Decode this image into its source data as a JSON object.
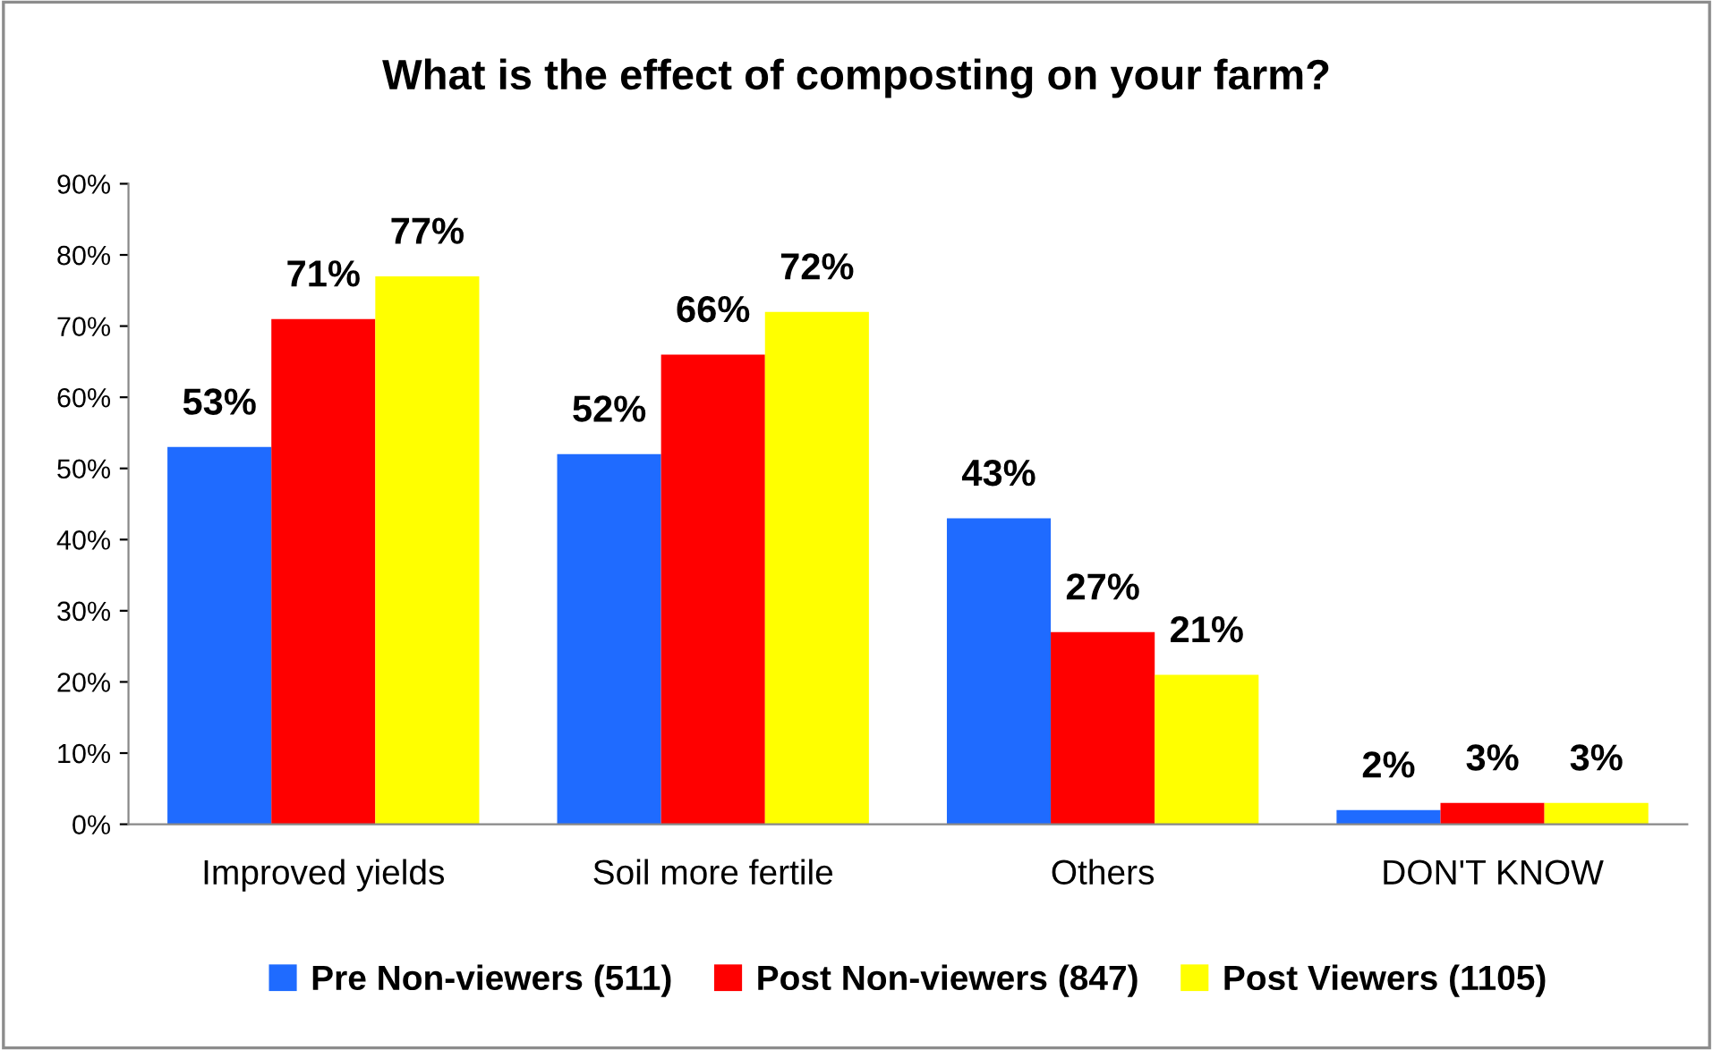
{
  "chart_data": {
    "type": "bar",
    "title": "What is the effect of composting on your farm?",
    "categories": [
      "Improved yields",
      "Soil more fertile",
      "Others",
      "DON'T KNOW"
    ],
    "series": [
      {
        "name": "Pre Non-viewers (511)",
        "color": "#1f6bff",
        "values": [
          53,
          52,
          43,
          2
        ],
        "value_labels": [
          "53%",
          "52%",
          "43%",
          "2%"
        ]
      },
      {
        "name": "Post Non-viewers (847)",
        "color": "#ff0000",
        "values": [
          71,
          66,
          27,
          3
        ],
        "value_labels": [
          "71%",
          "66%",
          "27%",
          "3%"
        ]
      },
      {
        "name": "Post Viewers (1105)",
        "color": "#ffff00",
        "values": [
          77,
          72,
          21,
          3
        ],
        "value_labels": [
          "77%",
          "72%",
          "21%",
          "3%"
        ]
      }
    ],
    "ylim": [
      0,
      90
    ],
    "yticks": [
      {
        "value": 0,
        "label": "0%"
      },
      {
        "value": 10,
        "label": "10%"
      },
      {
        "value": 20,
        "label": "20%"
      },
      {
        "value": 30,
        "label": "30%"
      },
      {
        "value": 40,
        "label": "40%"
      },
      {
        "value": 50,
        "label": "50%"
      },
      {
        "value": 60,
        "label": "60%"
      },
      {
        "value": 70,
        "label": "70%"
      },
      {
        "value": 80,
        "label": "80%"
      },
      {
        "value": 90,
        "label": "90%"
      }
    ],
    "grid": false,
    "legend": "bottom"
  }
}
